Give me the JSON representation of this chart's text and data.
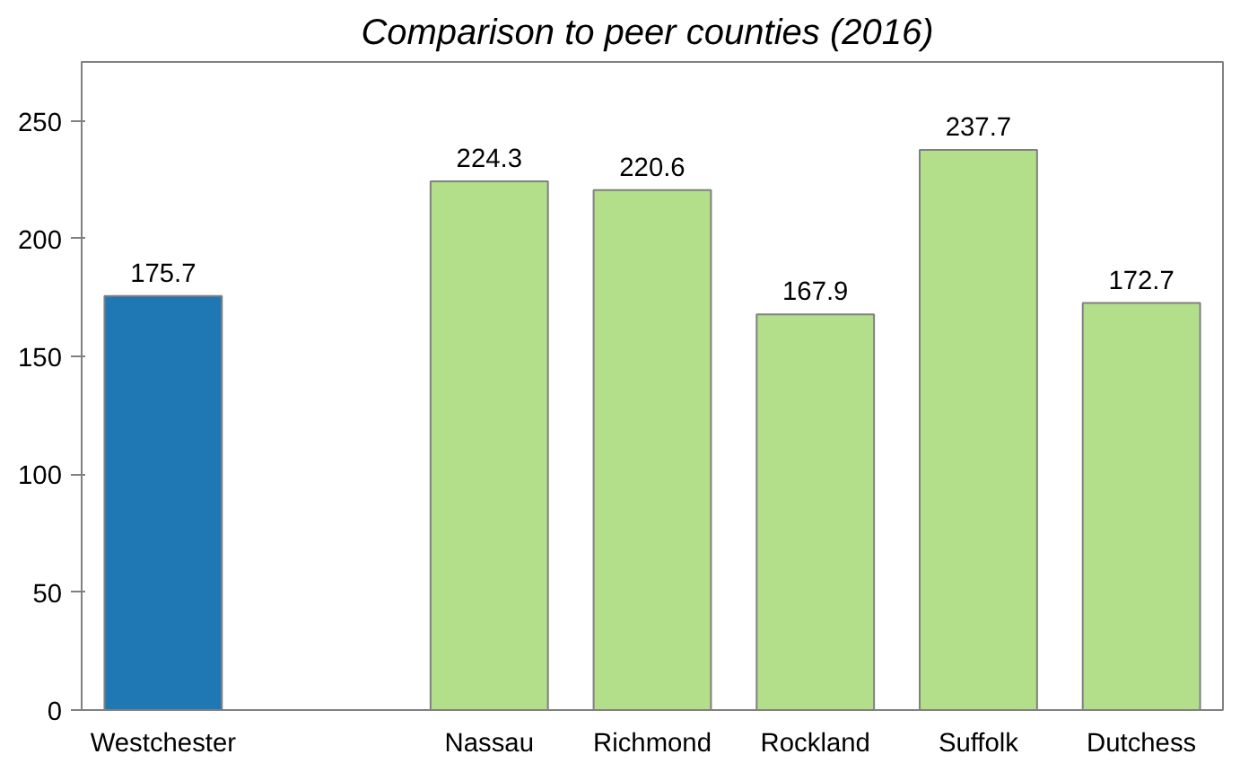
{
  "chart_data": {
    "type": "bar",
    "title": "Comparison to peer counties  (2016)",
    "categories": [
      "Westchester",
      null,
      "Nassau",
      "Richmond",
      "Rockland",
      "Suffolk",
      "Dutchess"
    ],
    "values": [
      175.7,
      null,
      224.3,
      220.6,
      167.9,
      237.7,
      172.7
    ],
    "colors": [
      "#1f77b4",
      "#b3de8a",
      "#b3de8a",
      "#b3de8a",
      "#b3de8a",
      "#b3de8a",
      "#b3de8a"
    ],
    "data_labels": true,
    "ylim": [
      0,
      275
    ],
    "yticks": [
      0,
      50,
      100,
      150,
      200,
      250
    ],
    "grid": false
  }
}
